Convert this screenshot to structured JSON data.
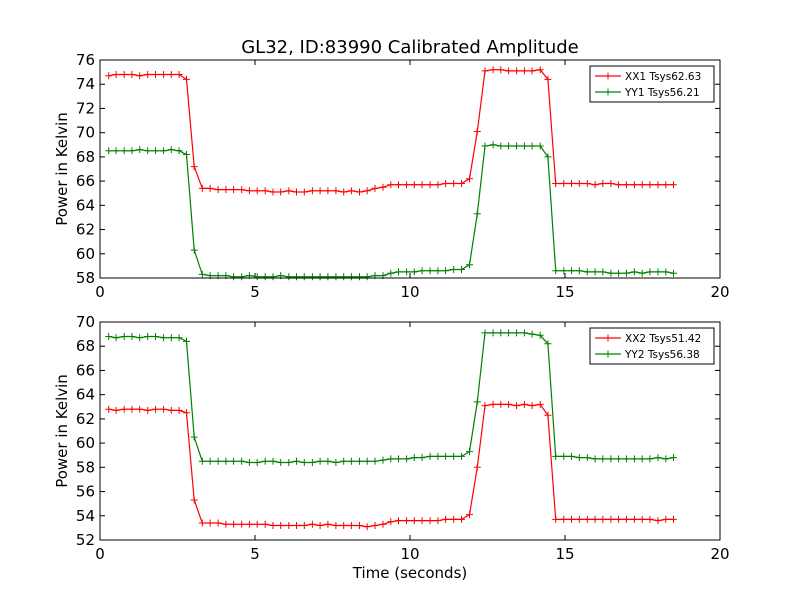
{
  "chart_data": {
    "type": "line",
    "title": "GL32, ID:83990 Calibrated Amplitude",
    "xlabel": "Time (seconds)",
    "panels": [
      {
        "ylabel": "Power in Kelvin",
        "xlim": [
          0,
          20
        ],
        "ylim": [
          58,
          76
        ],
        "xticks": [
          0,
          5,
          10,
          15,
          20
        ],
        "yticks": [
          58,
          60,
          62,
          64,
          66,
          68,
          70,
          72,
          74,
          76
        ],
        "legend_position": "top-right",
        "series": [
          {
            "name": "XX1 Tsys62.63",
            "color": "#ff0000",
            "x": [
              0.28,
              0.52,
              0.78,
              1.03,
              1.28,
              1.54,
              1.79,
              2.05,
              2.3,
              2.55,
              2.79,
              3.04,
              3.3,
              3.55,
              3.81,
              4.06,
              4.31,
              4.57,
              4.82,
              5.07,
              5.33,
              5.58,
              5.83,
              6.09,
              6.34,
              6.59,
              6.85,
              7.1,
              7.35,
              7.61,
              7.86,
              8.11,
              8.37,
              8.62,
              8.87,
              9.13,
              9.38,
              9.63,
              9.89,
              10.14,
              10.39,
              10.65,
              10.9,
              11.15,
              11.41,
              11.66,
              11.92,
              12.17,
              12.42,
              12.68,
              12.93,
              13.18,
              13.44,
              13.69,
              13.94,
              14.2,
              14.45,
              14.7,
              14.96,
              15.21,
              15.46,
              15.72,
              15.97,
              16.22,
              16.48,
              16.73,
              16.98,
              17.24,
              17.49,
              17.74,
              18.0,
              18.25,
              18.5
            ],
            "y": [
              74.7,
              74.8,
              74.8,
              74.8,
              74.7,
              74.8,
              74.8,
              74.8,
              74.8,
              74.8,
              74.4,
              67.2,
              65.4,
              65.4,
              65.3,
              65.3,
              65.3,
              65.3,
              65.2,
              65.2,
              65.2,
              65.1,
              65.1,
              65.2,
              65.1,
              65.1,
              65.2,
              65.2,
              65.2,
              65.2,
              65.1,
              65.2,
              65.1,
              65.2,
              65.4,
              65.5,
              65.7,
              65.7,
              65.7,
              65.7,
              65.7,
              65.7,
              65.7,
              65.8,
              65.8,
              65.8,
              66.2,
              70.1,
              75.1,
              75.2,
              75.2,
              75.1,
              75.1,
              75.1,
              75.1,
              75.2,
              74.4,
              65.8,
              65.8,
              65.8,
              65.8,
              65.8,
              65.7,
              65.8,
              65.8,
              65.7,
              65.7,
              65.7,
              65.7,
              65.7,
              65.7,
              65.7,
              65.7
            ]
          },
          {
            "name": "YY1 Tsys56.21",
            "color": "#008000",
            "x": [
              0.28,
              0.52,
              0.78,
              1.03,
              1.28,
              1.54,
              1.79,
              2.05,
              2.3,
              2.55,
              2.79,
              3.04,
              3.3,
              3.55,
              3.81,
              4.06,
              4.31,
              4.57,
              4.82,
              5.07,
              5.33,
              5.58,
              5.83,
              6.09,
              6.34,
              6.59,
              6.85,
              7.1,
              7.35,
              7.61,
              7.86,
              8.11,
              8.37,
              8.62,
              8.87,
              9.13,
              9.38,
              9.63,
              9.89,
              10.14,
              10.39,
              10.65,
              10.9,
              11.15,
              11.41,
              11.66,
              11.92,
              12.17,
              12.42,
              12.68,
              12.93,
              13.18,
              13.44,
              13.69,
              13.94,
              14.2,
              14.45,
              14.7,
              14.96,
              15.21,
              15.46,
              15.72,
              15.97,
              16.22,
              16.48,
              16.73,
              16.98,
              17.24,
              17.49,
              17.74,
              18.0,
              18.25,
              18.5
            ],
            "y": [
              68.5,
              68.5,
              68.5,
              68.5,
              68.6,
              68.5,
              68.5,
              68.5,
              68.6,
              68.5,
              68.2,
              60.3,
              58.3,
              58.2,
              58.2,
              58.2,
              58.1,
              58.1,
              58.2,
              58.1,
              58.1,
              58.1,
              58.2,
              58.1,
              58.1,
              58.1,
              58.1,
              58.1,
              58.1,
              58.1,
              58.1,
              58.1,
              58.1,
              58.1,
              58.2,
              58.2,
              58.4,
              58.5,
              58.5,
              58.5,
              58.6,
              58.6,
              58.6,
              58.6,
              58.7,
              58.7,
              59.1,
              63.3,
              68.9,
              69.0,
              68.9,
              68.9,
              68.9,
              68.9,
              68.9,
              68.9,
              68.0,
              58.6,
              58.6,
              58.6,
              58.6,
              58.5,
              58.5,
              58.5,
              58.4,
              58.4,
              58.4,
              58.5,
              58.4,
              58.5,
              58.5,
              58.5,
              58.4
            ]
          }
        ]
      },
      {
        "ylabel": "Power in Kelvin",
        "xlim": [
          0,
          20
        ],
        "ylim": [
          52,
          70
        ],
        "xticks": [
          0,
          5,
          10,
          15,
          20
        ],
        "yticks": [
          52,
          54,
          56,
          58,
          60,
          62,
          64,
          66,
          68,
          70
        ],
        "legend_position": "top-right",
        "series": [
          {
            "name": "XX2 Tsys51.42",
            "color": "#ff0000",
            "x": [
              0.28,
              0.52,
              0.78,
              1.03,
              1.28,
              1.54,
              1.79,
              2.05,
              2.3,
              2.55,
              2.79,
              3.04,
              3.3,
              3.55,
              3.81,
              4.06,
              4.31,
              4.57,
              4.82,
              5.07,
              5.33,
              5.58,
              5.83,
              6.09,
              6.34,
              6.59,
              6.85,
              7.1,
              7.35,
              7.61,
              7.86,
              8.11,
              8.37,
              8.62,
              8.87,
              9.13,
              9.38,
              9.63,
              9.89,
              10.14,
              10.39,
              10.65,
              10.9,
              11.15,
              11.41,
              11.66,
              11.92,
              12.17,
              12.42,
              12.68,
              12.93,
              13.18,
              13.44,
              13.69,
              13.94,
              14.2,
              14.45,
              14.7,
              14.96,
              15.21,
              15.46,
              15.72,
              15.97,
              16.22,
              16.48,
              16.73,
              16.98,
              17.24,
              17.49,
              17.74,
              18.0,
              18.25,
              18.5
            ],
            "y": [
              62.8,
              62.7,
              62.8,
              62.8,
              62.8,
              62.7,
              62.8,
              62.8,
              62.7,
              62.7,
              62.5,
              55.3,
              53.4,
              53.4,
              53.4,
              53.3,
              53.3,
              53.3,
              53.3,
              53.3,
              53.3,
              53.2,
              53.2,
              53.2,
              53.2,
              53.2,
              53.3,
              53.2,
              53.3,
              53.2,
              53.2,
              53.2,
              53.2,
              53.1,
              53.2,
              53.3,
              53.5,
              53.6,
              53.6,
              53.6,
              53.6,
              53.6,
              53.6,
              53.7,
              53.7,
              53.7,
              54.1,
              58.0,
              63.1,
              63.2,
              63.2,
              63.2,
              63.1,
              63.2,
              63.1,
              63.2,
              62.3,
              53.7,
              53.7,
              53.7,
              53.7,
              53.7,
              53.7,
              53.7,
              53.7,
              53.7,
              53.7,
              53.7,
              53.7,
              53.7,
              53.6,
              53.7,
              53.7
            ]
          },
          {
            "name": "YY2 Tsys56.38",
            "color": "#008000",
            "x": [
              0.28,
              0.52,
              0.78,
              1.03,
              1.28,
              1.54,
              1.79,
              2.05,
              2.3,
              2.55,
              2.79,
              3.04,
              3.3,
              3.55,
              3.81,
              4.06,
              4.31,
              4.57,
              4.82,
              5.07,
              5.33,
              5.58,
              5.83,
              6.09,
              6.34,
              6.59,
              6.85,
              7.1,
              7.35,
              7.61,
              7.86,
              8.11,
              8.37,
              8.62,
              8.87,
              9.13,
              9.38,
              9.63,
              9.89,
              10.14,
              10.39,
              10.65,
              10.9,
              11.15,
              11.41,
              11.66,
              11.92,
              12.17,
              12.42,
              12.68,
              12.93,
              13.18,
              13.44,
              13.69,
              13.94,
              14.2,
              14.45,
              14.7,
              14.96,
              15.21,
              15.46,
              15.72,
              15.97,
              16.22,
              16.48,
              16.73,
              16.98,
              17.24,
              17.49,
              17.74,
              18.0,
              18.25,
              18.5
            ],
            "y": [
              68.8,
              68.7,
              68.8,
              68.8,
              68.7,
              68.8,
              68.8,
              68.7,
              68.7,
              68.7,
              68.4,
              60.5,
              58.5,
              58.5,
              58.5,
              58.5,
              58.5,
              58.5,
              58.4,
              58.4,
              58.5,
              58.5,
              58.4,
              58.4,
              58.5,
              58.4,
              58.4,
              58.5,
              58.5,
              58.4,
              58.5,
              58.5,
              58.5,
              58.5,
              58.5,
              58.6,
              58.7,
              58.7,
              58.7,
              58.8,
              58.8,
              58.9,
              58.9,
              58.9,
              58.9,
              58.9,
              59.3,
              63.4,
              69.1,
              69.1,
              69.1,
              69.1,
              69.1,
              69.1,
              69.0,
              68.9,
              68.2,
              58.9,
              58.9,
              58.9,
              58.8,
              58.8,
              58.7,
              58.7,
              58.7,
              58.7,
              58.7,
              58.7,
              58.7,
              58.7,
              58.8,
              58.7,
              58.8
            ]
          }
        ]
      }
    ]
  }
}
